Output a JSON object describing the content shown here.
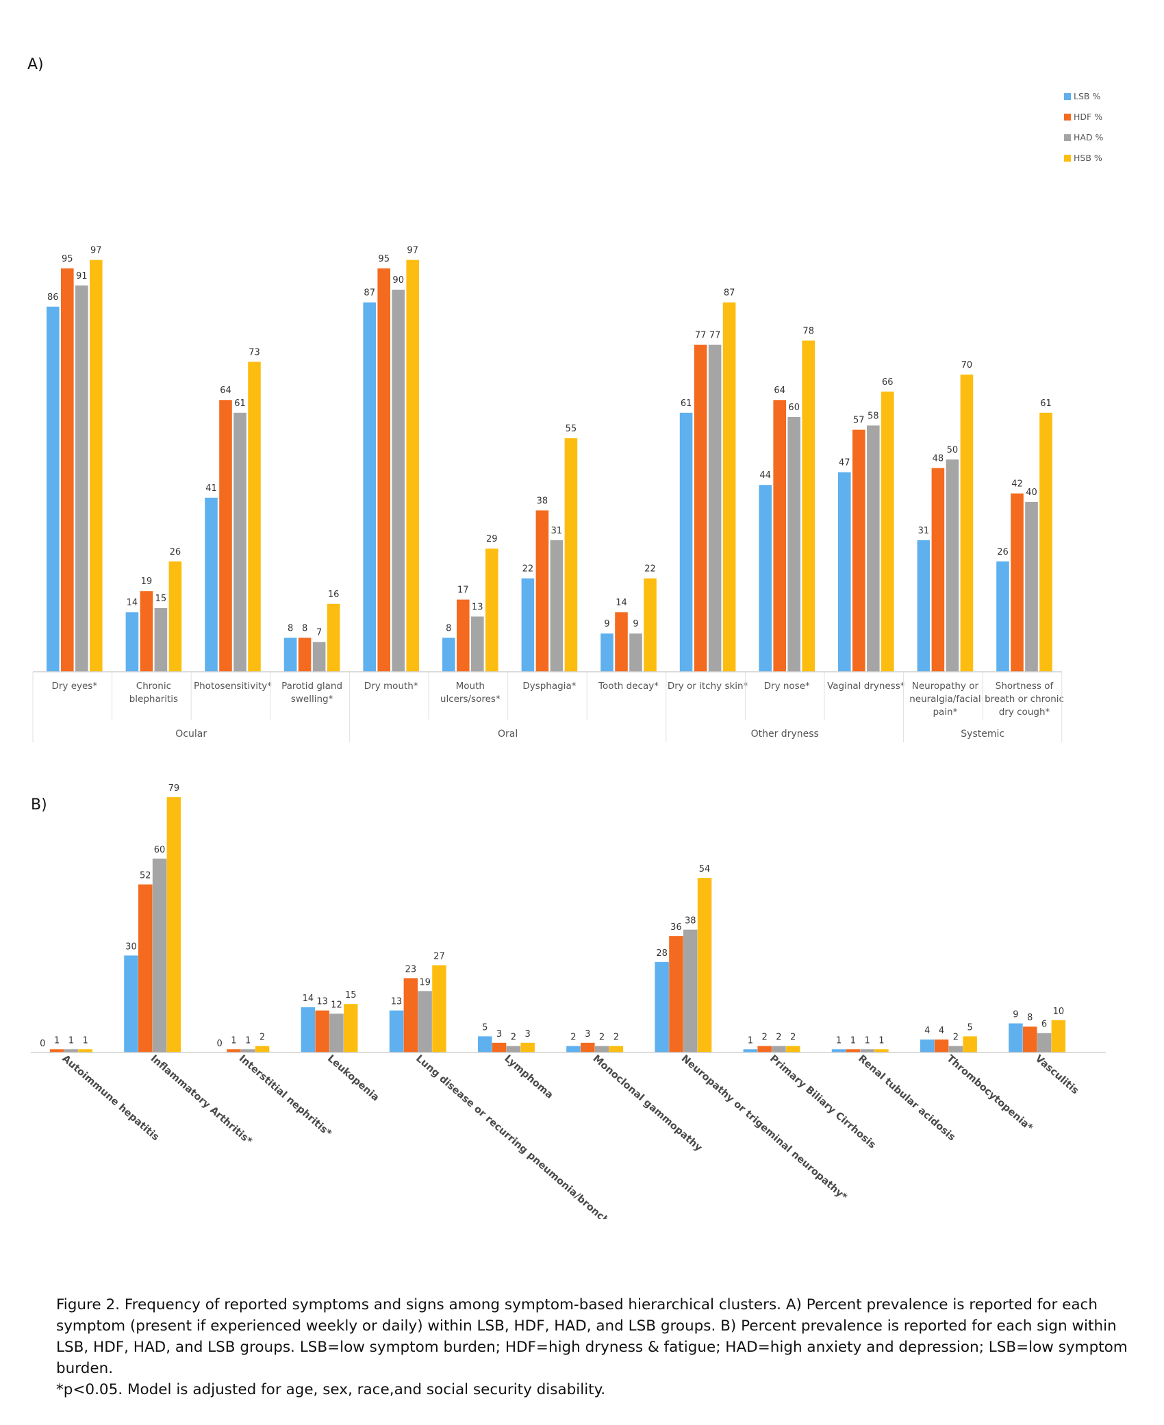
{
  "panel_a_label": "A)",
  "panel_b_label": "B)",
  "caption": [
    "Figure 2. Frequency of reported symptoms  and signs among symptom-based hierarchical clusters.  A) Percent prevalence is reported for each",
    "symptom (present if experienced weekly or daily) within LSB, HDF, HAD, and LSB groups. B) Percent prevalence is reported for each sign within",
    "LSB, HDF, HAD, and LSB groups. LSB=low symptom burden; HDF=high dryness & fatigue; HAD=high anxiety and depression; LSB=low symptom burden.",
    "*p<0.05.  Model is adjusted for age, sex, race,and social security disability."
  ],
  "colors": {
    "LSB": "#5fb0ee",
    "HDF": "#f46a1e",
    "HAD": "#a5a5a5",
    "HSB": "#fdbd10"
  },
  "chart_data": [
    {
      "type": "bar",
      "panel": "A)",
      "legend": [
        "LSB %",
        "HDF %",
        "HAD %",
        "HSB  %"
      ],
      "legend_position": "top-right",
      "categories": [
        [
          "Dry eyes*"
        ],
        [
          "Chronic",
          "blepharitis"
        ],
        [
          "Photosensitivity*"
        ],
        [
          "Parotid gland",
          "swelling*"
        ],
        [
          "Dry mouth*"
        ],
        [
          "Mouth",
          "ulcers/sores*"
        ],
        [
          "Dysphagia*"
        ],
        [
          "Tooth decay*"
        ],
        [
          "Dry or itchy skin*"
        ],
        [
          "Dry nose*"
        ],
        [
          "Vaginal dryness*"
        ],
        [
          "Neuropathy or",
          "neuralgia/facial",
          "pain*"
        ],
        [
          "Shortness of",
          "breath or chronic",
          "dry cough*"
        ]
      ],
      "groups": [
        {
          "label": "Ocular",
          "start": 0,
          "end": 3
        },
        {
          "label": "Oral",
          "start": 4,
          "end": 7
        },
        {
          "label": "Other dryness",
          "start": 8,
          "end": 10
        },
        {
          "label": "Systemic",
          "start": 11,
          "end": 12
        }
      ],
      "series": [
        {
          "name": "LSB %",
          "key": "LSB",
          "values": [
            86,
            14,
            41,
            8,
            87,
            8,
            22,
            9,
            61,
            44,
            47,
            31,
            26
          ]
        },
        {
          "name": "HDF %",
          "key": "HDF",
          "values": [
            95,
            19,
            64,
            8,
            95,
            17,
            38,
            14,
            77,
            64,
            57,
            48,
            42
          ]
        },
        {
          "name": "HAD %",
          "key": "HAD",
          "values": [
            91,
            15,
            61,
            7,
            90,
            13,
            31,
            9,
            77,
            60,
            58,
            50,
            40
          ]
        },
        {
          "name": "HSB  %",
          "key": "HSB",
          "values": [
            97,
            26,
            73,
            16,
            97,
            29,
            55,
            22,
            87,
            78,
            66,
            70,
            61
          ]
        }
      ],
      "ylim": [
        0,
        100
      ],
      "grid": false
    },
    {
      "type": "bar",
      "panel": "B)",
      "categories": [
        "Autoimmune hepatitis",
        "Inflammatory Arthritis*",
        "Interstitial nephritis*",
        "Leukopenia",
        "Lung disease or recurring pneumonia/bronchitis*",
        "Lymphoma",
        "Monoclonal gammopathy",
        "Neuropathy or trigeminal neuropathy*",
        "Primary Biliary Cirrhosis",
        "Renal tubular acidosis",
        "Thrombocytopenia*",
        "Vasculitis"
      ],
      "series": [
        {
          "name": "LSB %",
          "key": "LSB",
          "values": [
            0,
            30,
            0,
            14,
            13,
            5,
            2,
            28,
            1,
            1,
            4,
            9
          ]
        },
        {
          "name": "HDF %",
          "key": "HDF",
          "values": [
            1,
            52,
            1,
            13,
            23,
            3,
            3,
            36,
            2,
            1,
            4,
            8
          ]
        },
        {
          "name": "HAD %",
          "key": "HAD",
          "values": [
            1,
            60,
            1,
            12,
            19,
            2,
            2,
            38,
            2,
            1,
            2,
            6
          ]
        },
        {
          "name": "HSB  %",
          "key": "HSB",
          "values": [
            1,
            79,
            2,
            15,
            27,
            3,
            2,
            54,
            2,
            1,
            5,
            10
          ]
        }
      ],
      "ylim": [
        0,
        80
      ],
      "grid": false
    }
  ]
}
